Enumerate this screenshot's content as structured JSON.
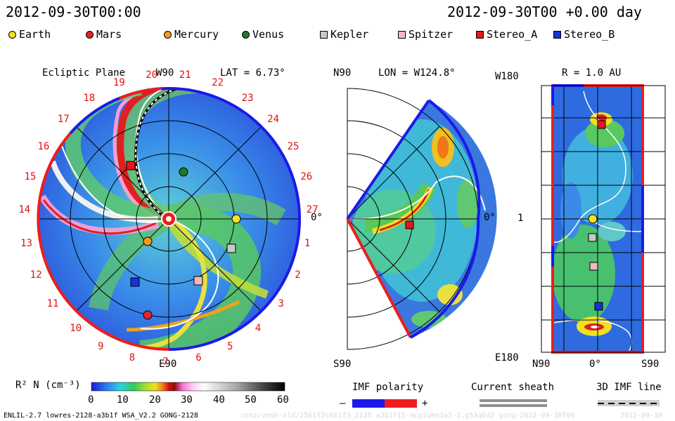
{
  "header": {
    "left_time": "2012-09-30T00:00",
    "right_time": "2012-09-30T00 +0.00 day"
  },
  "legend": [
    {
      "label": "Earth",
      "shape": "circle",
      "color": "#f5e31b",
      "icon": "earth-marker-icon"
    },
    {
      "label": "Mars",
      "shape": "circle",
      "color": "#e8222a",
      "icon": "mars-marker-icon"
    },
    {
      "label": "Mercury",
      "shape": "circle",
      "color": "#f59a1e",
      "icon": "mercury-marker-icon"
    },
    {
      "label": "Venus",
      "shape": "circle",
      "color": "#1f7a2a",
      "icon": "venus-marker-icon"
    },
    {
      "label": "Kepler",
      "shape": "square",
      "color": "#c8c8c8",
      "icon": "kepler-marker-icon"
    },
    {
      "label": "Spitzer",
      "shape": "square",
      "color": "#f4b8c0",
      "icon": "spitzer-marker-icon"
    },
    {
      "label": "Stereo_A",
      "shape": "square",
      "color": "#e8161a",
      "icon": "stereo-a-marker-icon"
    },
    {
      "label": "Stereo_B",
      "shape": "square",
      "color": "#1a2fd8",
      "icon": "stereo-b-marker-icon"
    }
  ],
  "ecliptic": {
    "title": "Ecliptic Plane",
    "top_label": "W90",
    "bottom_label": "E90",
    "right_label": "0°",
    "lat_label": "LAT = 6.73°",
    "carrington_ticks": [
      "19",
      "20",
      "21",
      "22",
      "23",
      "24",
      "25",
      "26",
      "27",
      "1",
      "2",
      "3",
      "4",
      "5",
      "6",
      "7",
      "8",
      "9",
      "10",
      "11",
      "12",
      "13",
      "14",
      "15",
      "16",
      "17",
      "18"
    ]
  },
  "meridional": {
    "top_left": "N90",
    "bottom_left": "S90",
    "right_label": "0°",
    "lon_label": "LON = W124.8°"
  },
  "cylindrical": {
    "top_left": "W180",
    "mid_left": "1",
    "bottom_left": "E180",
    "bottom_axis": [
      "N90",
      "0°",
      "S90"
    ],
    "radius_label": "R = 1.0 AU"
  },
  "colorbar": {
    "label": "R² N (cm⁻³)",
    "ticks": [
      "0",
      "10",
      "20",
      "30",
      "40",
      "50",
      "60"
    ]
  },
  "imf_polarity": {
    "label": "IMF polarity",
    "minus": "–",
    "plus": "+",
    "neg_color": "#1a1ae8",
    "pos_color": "#ee1c1c"
  },
  "current_sheath": {
    "label": "Current sheath"
  },
  "imf_line": {
    "label": "3D IMF line"
  },
  "footer": {
    "model_info": "ENLIL-2.7 lowres-2128-a3b1f WSA_V2.2 GONG-2128",
    "run_info": "conz/vesh-old/2561f3c6b1f3_2128 a3b1f15-mcp1umn1o2-1.g53q6d2 gong-2012-09-30T00",
    "run_date": "2012-09-30"
  }
}
